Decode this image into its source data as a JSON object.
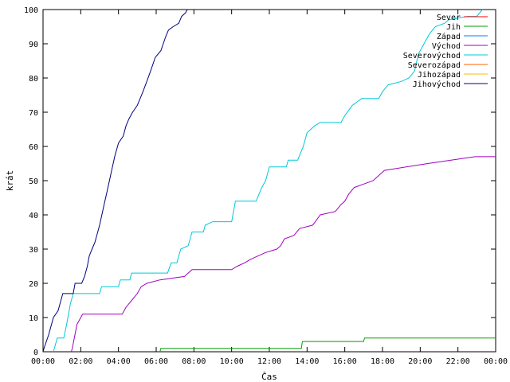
{
  "chart_data": {
    "type": "line",
    "xlabel": "Čas",
    "ylabel": "krát",
    "xlim": [
      0,
      24
    ],
    "ylim": [
      0,
      100
    ],
    "x_tick_labels": [
      "00:00",
      "02:00",
      "04:00",
      "06:00",
      "08:00",
      "10:00",
      "12:00",
      "14:00",
      "16:00",
      "18:00",
      "20:00",
      "22:00",
      "00:00"
    ],
    "y_tick_labels": [
      "0",
      "10",
      "20",
      "30",
      "40",
      "50",
      "60",
      "70",
      "80",
      "90",
      "100"
    ],
    "grid": false,
    "legend_position": "top-right",
    "series": [
      {
        "name": "Sever",
        "color": "#ff0000",
        "points": []
      },
      {
        "name": "Jih",
        "color": "#00a000",
        "points": [
          [
            6.2,
            0
          ],
          [
            6.25,
            1
          ],
          [
            13.7,
            1
          ],
          [
            13.75,
            3
          ],
          [
            17.0,
            3
          ],
          [
            17.05,
            4
          ],
          [
            24.0,
            4
          ]
        ]
      },
      {
        "name": "Západ",
        "color": "#0080ff",
        "points": []
      },
      {
        "name": "Východ",
        "color": "#a000c0",
        "points": [
          [
            1.5,
            0
          ],
          [
            1.55,
            1
          ],
          [
            1.8,
            8
          ],
          [
            2.1,
            11
          ],
          [
            4.2,
            11
          ],
          [
            4.4,
            13
          ],
          [
            4.7,
            15
          ],
          [
            5.0,
            17
          ],
          [
            5.2,
            19
          ],
          [
            5.5,
            20
          ],
          [
            6.2,
            21
          ],
          [
            7.5,
            22
          ],
          [
            7.7,
            23
          ],
          [
            7.9,
            24
          ],
          [
            10.0,
            24
          ],
          [
            10.3,
            25
          ],
          [
            10.7,
            26
          ],
          [
            11.0,
            27
          ],
          [
            11.4,
            28
          ],
          [
            11.8,
            29
          ],
          [
            12.4,
            30
          ],
          [
            12.6,
            31
          ],
          [
            12.8,
            33
          ],
          [
            13.3,
            34
          ],
          [
            13.6,
            36
          ],
          [
            14.3,
            37
          ],
          [
            14.7,
            40
          ],
          [
            15.5,
            41
          ],
          [
            15.8,
            43
          ],
          [
            16.0,
            44
          ],
          [
            16.2,
            46
          ],
          [
            16.5,
            48
          ],
          [
            17.0,
            49
          ],
          [
            17.5,
            50
          ],
          [
            18.1,
            53
          ],
          [
            20.4,
            55
          ],
          [
            22.9,
            57
          ],
          [
            24.0,
            57
          ]
        ]
      },
      {
        "name": "Severovýchod",
        "color": "#00c8d8",
        "points": [
          [
            0.55,
            0
          ],
          [
            0.6,
            1
          ],
          [
            0.75,
            4
          ],
          [
            1.1,
            4
          ],
          [
            1.25,
            8
          ],
          [
            1.45,
            14
          ],
          [
            1.6,
            17
          ],
          [
            3.0,
            17
          ],
          [
            3.1,
            19
          ],
          [
            4.0,
            19
          ],
          [
            4.1,
            21
          ],
          [
            4.6,
            21
          ],
          [
            4.7,
            23
          ],
          [
            6.6,
            23
          ],
          [
            6.8,
            26
          ],
          [
            7.1,
            26
          ],
          [
            7.3,
            30
          ],
          [
            7.7,
            31
          ],
          [
            7.9,
            35
          ],
          [
            8.5,
            35
          ],
          [
            8.6,
            37
          ],
          [
            9.0,
            38
          ],
          [
            10.0,
            38
          ],
          [
            10.2,
            44
          ],
          [
            11.3,
            44
          ],
          [
            11.6,
            48
          ],
          [
            11.8,
            50
          ],
          [
            12.0,
            54
          ],
          [
            12.9,
            54
          ],
          [
            13.0,
            56
          ],
          [
            13.5,
            56
          ],
          [
            13.8,
            60
          ],
          [
            14.0,
            64
          ],
          [
            14.4,
            66
          ],
          [
            14.7,
            67
          ],
          [
            15.8,
            67
          ],
          [
            16.0,
            69
          ],
          [
            16.4,
            72
          ],
          [
            16.9,
            74
          ],
          [
            17.8,
            74
          ],
          [
            18.0,
            76
          ],
          [
            18.3,
            78
          ],
          [
            19.0,
            79
          ],
          [
            19.4,
            80
          ],
          [
            19.7,
            82
          ],
          [
            19.9,
            87
          ],
          [
            20.2,
            90
          ],
          [
            20.5,
            93
          ],
          [
            20.8,
            95
          ],
          [
            21.3,
            96
          ],
          [
            21.5,
            97
          ],
          [
            22.5,
            98
          ],
          [
            23.0,
            98
          ],
          [
            23.3,
            100
          ]
        ]
      },
      {
        "name": "Severozápad",
        "color": "#ff6000",
        "points": []
      },
      {
        "name": "Jihozápad",
        "color": "#f0c000",
        "points": []
      },
      {
        "name": "Jihovýchod",
        "color": "#000080",
        "points": [
          [
            0.0,
            0
          ],
          [
            0.05,
            1
          ],
          [
            0.3,
            5
          ],
          [
            0.55,
            10
          ],
          [
            0.8,
            12
          ],
          [
            1.05,
            17
          ],
          [
            1.6,
            17
          ],
          [
            1.7,
            20
          ],
          [
            2.05,
            20
          ],
          [
            2.2,
            22
          ],
          [
            2.35,
            25
          ],
          [
            2.45,
            28
          ],
          [
            2.6,
            30
          ],
          [
            2.75,
            32
          ],
          [
            2.85,
            34
          ],
          [
            3.0,
            37
          ],
          [
            3.2,
            42
          ],
          [
            3.4,
            47
          ],
          [
            3.6,
            52
          ],
          [
            3.8,
            57
          ],
          [
            4.0,
            61
          ],
          [
            4.25,
            63
          ],
          [
            4.4,
            66
          ],
          [
            4.55,
            68
          ],
          [
            4.75,
            70
          ],
          [
            5.0,
            72
          ],
          [
            5.3,
            76
          ],
          [
            5.5,
            79
          ],
          [
            5.7,
            82
          ],
          [
            5.95,
            86
          ],
          [
            6.25,
            88
          ],
          [
            6.5,
            92
          ],
          [
            6.65,
            94
          ],
          [
            6.9,
            95
          ],
          [
            7.2,
            96
          ],
          [
            7.35,
            98
          ],
          [
            7.55,
            99
          ],
          [
            7.65,
            100
          ]
        ]
      }
    ]
  }
}
